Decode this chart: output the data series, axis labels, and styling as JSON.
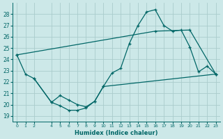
{
  "xlabel": "Humidex (Indice chaleur)",
  "bg_color": "#cce8e8",
  "grid_color": "#aacccc",
  "line_color": "#006666",
  "xlim": [
    -0.5,
    23.5
  ],
  "ylim": [
    18.5,
    29.0
  ],
  "yticks": [
    19,
    20,
    21,
    22,
    23,
    24,
    25,
    26,
    27,
    28
  ],
  "xticks": [
    0,
    1,
    2,
    4,
    5,
    6,
    7,
    8,
    9,
    10,
    11,
    12,
    13,
    14,
    15,
    16,
    17,
    18,
    19,
    20,
    21,
    22,
    23
  ],
  "line1_x": [
    0,
    1,
    2,
    4,
    5,
    6,
    7,
    8,
    9,
    10,
    11,
    12,
    13,
    14,
    15,
    16,
    17,
    18,
    19,
    20,
    21,
    22,
    23
  ],
  "line1_y": [
    24.4,
    22.7,
    22.3,
    20.2,
    19.9,
    19.5,
    19.5,
    19.7,
    20.3,
    21.6,
    22.8,
    23.2,
    25.4,
    27.0,
    28.2,
    28.4,
    27.0,
    26.5,
    26.6,
    25.1,
    22.9,
    23.4,
    22.7
  ],
  "line2_x": [
    0,
    16,
    20,
    23
  ],
  "line2_y": [
    24.4,
    26.5,
    26.6,
    22.7
  ],
  "line3_x": [
    2,
    4,
    5,
    6,
    7,
    8,
    9,
    10,
    23
  ],
  "line3_y": [
    22.3,
    20.2,
    20.8,
    20.4,
    20.0,
    19.8,
    20.3,
    21.6,
    22.7
  ]
}
